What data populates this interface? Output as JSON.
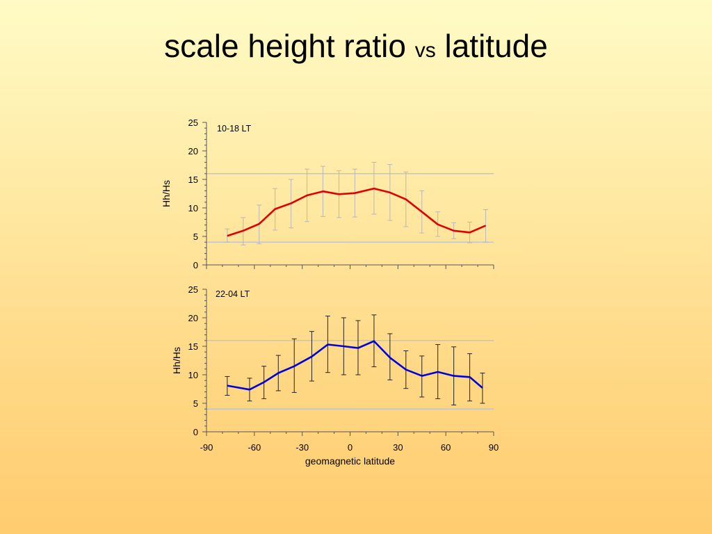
{
  "slide": {
    "title_part1": "scale height ratio",
    "title_part2": "vs",
    "title_part3": "latitude"
  },
  "chart_data": [
    {
      "type": "line",
      "annotation": "10-18 LT",
      "ylabel": "Hh/Hs",
      "xlabel": "",
      "xlim": [
        -90,
        90
      ],
      "ylim": [
        0,
        25
      ],
      "yticks": [
        0,
        5,
        10,
        15,
        20,
        25
      ],
      "xticks": [
        -90,
        -60,
        -30,
        0,
        30,
        60,
        90
      ],
      "reference_lines": [
        16,
        4
      ],
      "color": "#e00000",
      "errorbar_color": "#b8b8b8",
      "series": [
        {
          "x": [
            -77,
            -67,
            -57,
            -47,
            -37,
            -27,
            -17,
            -7,
            3,
            15,
            25,
            35,
            45,
            55,
            65,
            75,
            85
          ],
          "y": [
            5.1,
            6,
            7.2,
            9.8,
            10.8,
            12.2,
            12.9,
            12.4,
            12.6,
            13.4,
            12.7,
            11.5,
            9.3,
            7.1,
            6,
            5.7,
            6.9
          ],
          "err_low": [
            4,
            3.5,
            3.7,
            6.1,
            6.5,
            7.6,
            8.5,
            8.3,
            8.4,
            8.9,
            7.8,
            6.7,
            5.6,
            5,
            4.6,
            3.9,
            4
          ],
          "err_high": [
            6.3,
            8.3,
            10.5,
            13.4,
            15,
            16.8,
            17.3,
            16.5,
            16.8,
            18,
            17.6,
            16.3,
            13,
            9.3,
            7.4,
            7.5,
            9.7
          ]
        }
      ]
    },
    {
      "type": "line",
      "annotation": "22-04 LT",
      "ylabel": "Hh/Hs",
      "xlabel": "geomagnetic latitude",
      "xlim": [
        -90,
        90
      ],
      "ylim": [
        0,
        25
      ],
      "yticks": [
        0,
        5,
        10,
        15,
        20,
        25
      ],
      "xticks": [
        -90,
        -60,
        -30,
        0,
        30,
        60,
        90
      ],
      "reference_lines": [
        16,
        4
      ],
      "color": "#0000dd",
      "errorbar_color": "#222222",
      "series": [
        {
          "x": [
            -77,
            -63,
            -54,
            -45,
            -35,
            -24,
            -14,
            -4,
            5,
            15,
            25,
            35,
            45,
            55,
            65,
            75,
            83
          ],
          "y": [
            8.1,
            7.4,
            8.7,
            10.3,
            11.5,
            13.2,
            15.3,
            15,
            14.7,
            15.9,
            13,
            10.9,
            9.8,
            10.5,
            9.8,
            9.6,
            7.7
          ],
          "err_low": [
            6.4,
            5.4,
            5.8,
            7.2,
            6.9,
            8.9,
            10.4,
            10,
            10,
            11.4,
            9.1,
            7.6,
            6.1,
            5.8,
            4.7,
            5.4,
            5
          ],
          "err_high": [
            9.7,
            9.4,
            11.5,
            13.4,
            16.3,
            17.6,
            20.3,
            20,
            19.5,
            20.5,
            17.2,
            14.2,
            13.3,
            15.3,
            14.9,
            13.7,
            10.3
          ]
        }
      ]
    }
  ]
}
